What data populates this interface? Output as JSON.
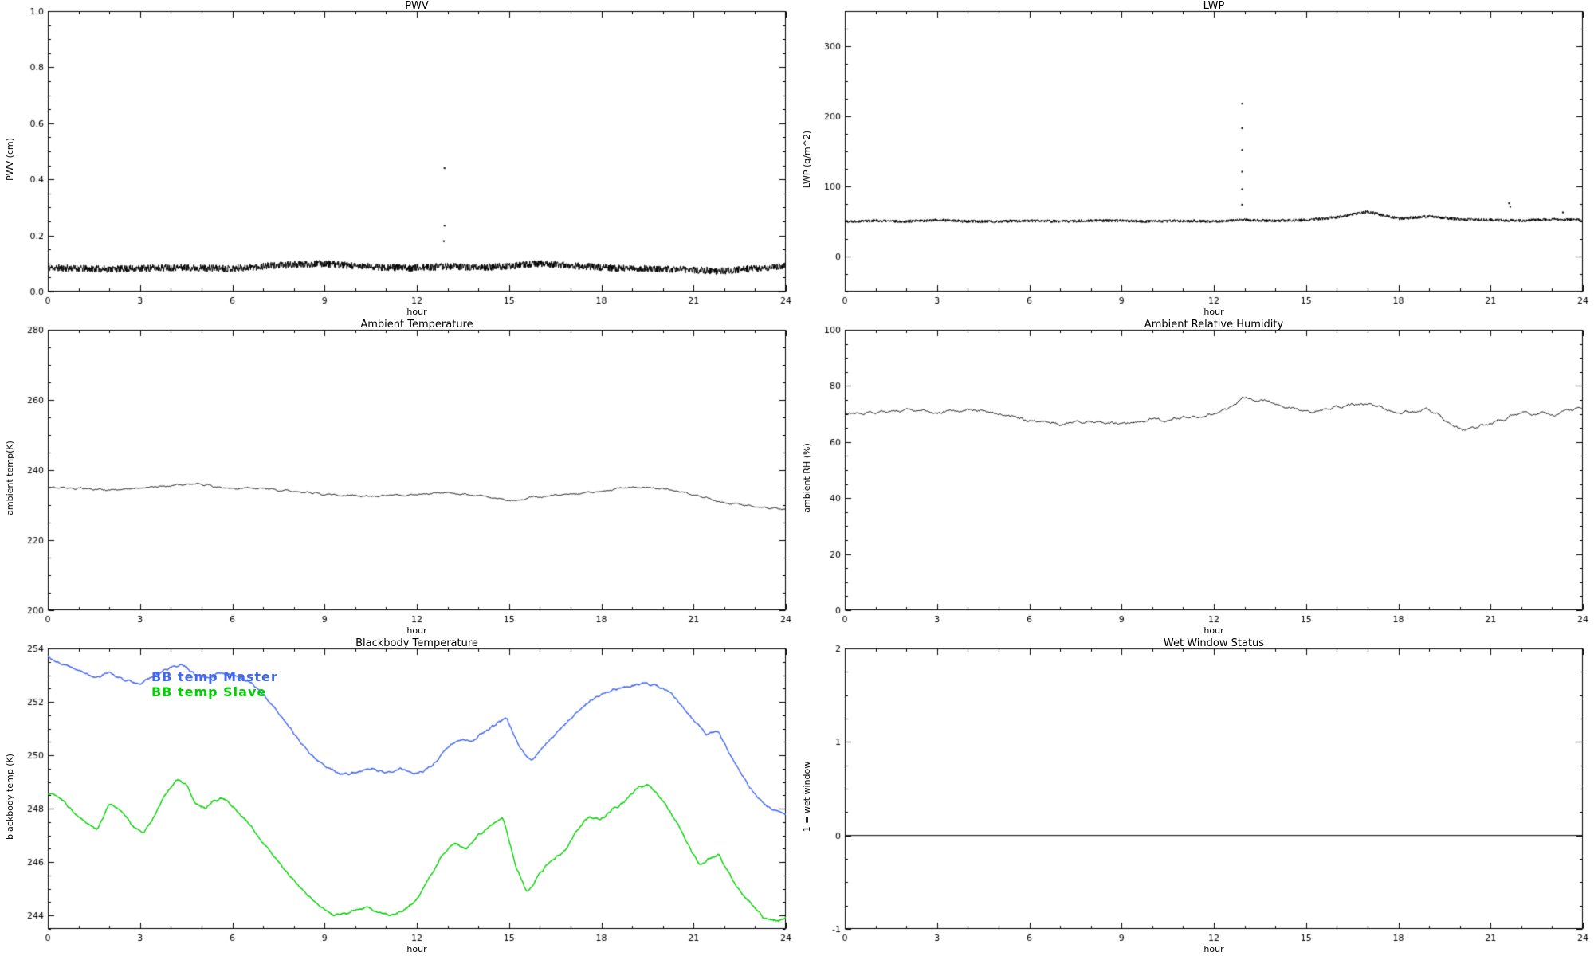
{
  "page": {
    "background": "#ffffff"
  },
  "chart_data": [
    {
      "id": "pwv",
      "type": "line",
      "title": "PWV",
      "xlabel": "hour",
      "ylabel": "PWV (cm)",
      "xlim": [
        0,
        24
      ],
      "ylim": [
        0,
        1
      ],
      "xticks": [
        0,
        3,
        6,
        9,
        12,
        15,
        18,
        21,
        24
      ],
      "xtick_labels": [
        "0",
        "3",
        "6",
        "9",
        "12",
        "15",
        "18",
        "21",
        "24"
      ],
      "yticks": [
        0,
        0.2,
        0.4,
        0.6,
        0.8,
        1
      ],
      "ytick_labels": [
        "0.0",
        "0.2",
        "0.4",
        "0.6",
        "0.8",
        "1.0"
      ],
      "xminor": 1,
      "yminor": 0.05,
      "grid": false,
      "seed": 11,
      "series": [
        {
          "name": "PWV",
          "color": "#000000",
          "dx": 1,
          "n": 2200,
          "noise": 0.013,
          "smooth": 0,
          "anchors_y": [
            0.085,
            0.082,
            0.08,
            0.082,
            0.086,
            0.084,
            0.082,
            0.09,
            0.096,
            0.1,
            0.09,
            0.086,
            0.084,
            0.09,
            0.086,
            0.09,
            0.1,
            0.092,
            0.086,
            0.082,
            0.08,
            0.077,
            0.073,
            0.082,
            0.09
          ]
        }
      ],
      "outliers": [
        [
          12.9,
          0.44
        ],
        [
          12.9,
          0.235
        ],
        [
          12.88,
          0.18
        ]
      ]
    },
    {
      "id": "lwp",
      "type": "line",
      "title": "LWP",
      "xlabel": "hour",
      "ylabel": "LWP (g/m^2)",
      "xlim": [
        0,
        24
      ],
      "ylim": [
        -50,
        350
      ],
      "xticks": [
        0,
        3,
        6,
        9,
        12,
        15,
        18,
        21,
        24
      ],
      "xtick_labels": [
        "0",
        "3",
        "6",
        "9",
        "12",
        "15",
        "18",
        "21",
        "24"
      ],
      "yticks": [
        0,
        100,
        200,
        300
      ],
      "ytick_labels": [
        "0",
        "100",
        "200",
        "300"
      ],
      "xminor": 1,
      "yminor": 25,
      "grid": false,
      "seed": 22,
      "series": [
        {
          "name": "LWP",
          "color": "#000000",
          "dx": 1,
          "n": 2200,
          "noise": 2.2,
          "smooth": 0,
          "anchors_y": [
            50,
            51,
            50,
            52,
            50,
            50,
            51,
            50,
            51,
            51,
            50,
            51,
            50,
            52,
            51,
            52,
            56,
            64,
            54,
            57,
            53,
            52,
            51,
            53,
            52
          ]
        }
      ],
      "outliers": [
        [
          12.92,
          218
        ],
        [
          12.92,
          183
        ],
        [
          12.92,
          152
        ],
        [
          12.92,
          121
        ],
        [
          12.92,
          96
        ],
        [
          12.92,
          74
        ],
        [
          21.6,
          76
        ],
        [
          21.64,
          71
        ],
        [
          23.35,
          63
        ]
      ]
    },
    {
      "id": "ambient-temperature",
      "type": "line",
      "title": "Ambient Temperature",
      "xlabel": "hour",
      "ylabel": "ambient temp(K)",
      "xlim": [
        0,
        24
      ],
      "ylim": [
        200,
        280
      ],
      "xticks": [
        0,
        3,
        6,
        9,
        12,
        15,
        18,
        21,
        24
      ],
      "xtick_labels": [
        "0",
        "3",
        "6",
        "9",
        "12",
        "15",
        "18",
        "21",
        "24"
      ],
      "yticks": [
        200,
        220,
        240,
        260,
        280
      ],
      "ytick_labels": [
        "200",
        "220",
        "240",
        "260",
        "280"
      ],
      "xminor": 1,
      "yminor": 5,
      "grid": false,
      "seed": 33,
      "series": [
        {
          "name": "ambient temp",
          "color": "#000000",
          "dx": 1,
          "n": 1400,
          "noise": 1.0,
          "smooth": 5,
          "anchors_y": [
            235.0,
            234.6,
            234.3,
            234.9,
            235.6,
            235.9,
            234.7,
            234.6,
            233.9,
            233.0,
            232.8,
            232.6,
            233.1,
            233.4,
            232.9,
            231.2,
            232.5,
            233.1,
            233.9,
            235.2,
            234.7,
            233.1,
            230.7,
            229.6,
            228.7
          ]
        }
      ],
      "outliers": []
    },
    {
      "id": "ambient-relative-humidity",
      "type": "line",
      "title": "Ambient Relative Humidity",
      "xlabel": "hour",
      "ylabel": "ambient RH (%)",
      "xlim": [
        0,
        24
      ],
      "ylim": [
        0,
        100
      ],
      "xticks": [
        0,
        3,
        6,
        9,
        12,
        15,
        18,
        21,
        24
      ],
      "xtick_labels": [
        "0",
        "3",
        "6",
        "9",
        "12",
        "15",
        "18",
        "21",
        "24"
      ],
      "yticks": [
        0,
        20,
        40,
        60,
        80,
        100
      ],
      "ytick_labels": [
        "0",
        "20",
        "40",
        "60",
        "80",
        "100"
      ],
      "xminor": 1,
      "yminor": 5,
      "grid": false,
      "seed": 44,
      "series": [
        {
          "name": "ambient RH",
          "color": "#000000",
          "dx": 1,
          "n": 1400,
          "noise": 2.0,
          "smooth": 5,
          "anchors_y": [
            70,
            70.5,
            71.5,
            70.5,
            71.5,
            70,
            67.5,
            66.5,
            67.5,
            66.5,
            68,
            68.5,
            69.5,
            76,
            73.5,
            70.5,
            72.5,
            73.5,
            70.5,
            71.5,
            64.5,
            66.5,
            70.5,
            70,
            72
          ]
        }
      ],
      "outliers": []
    },
    {
      "id": "blackbody-temperature",
      "type": "line",
      "title": "Blackbody Temperature",
      "xlabel": "hour",
      "ylabel": "blackbody temp (K)",
      "xlim": [
        0,
        24
      ],
      "ylim": [
        243.5,
        254
      ],
      "xticks": [
        0,
        3,
        6,
        9,
        12,
        15,
        18,
        21,
        24
      ],
      "xtick_labels": [
        "0",
        "3",
        "6",
        "9",
        "12",
        "15",
        "18",
        "21",
        "24"
      ],
      "yticks": [
        244,
        246,
        248,
        250,
        252,
        254
      ],
      "ytick_labels": [
        "244",
        "246",
        "248",
        "250",
        "252",
        "254"
      ],
      "xminor": 1,
      "yminor": 0.5,
      "grid": false,
      "seed": 55,
      "legend": [
        {
          "label": "BB temp Master",
          "color": "#4368f0"
        },
        {
          "label": "BB temp Slave",
          "color": "#00d000"
        }
      ],
      "series": [
        {
          "name": "BB temp Master",
          "color": "#4368f0",
          "n": 1600,
          "noise": 0.1,
          "smooth": 3,
          "lw": 1.4,
          "anchors": [
            [
              0,
              253.7
            ],
            [
              0.5,
              253.4
            ],
            [
              1,
              253.2
            ],
            [
              1.5,
              252.9
            ],
            [
              2,
              253.1
            ],
            [
              2.5,
              252.8
            ],
            [
              3,
              252.7
            ],
            [
              3.5,
              253.0
            ],
            [
              4,
              253.3
            ],
            [
              4.4,
              253.4
            ],
            [
              4.8,
              253.0
            ],
            [
              5.2,
              252.9
            ],
            [
              5.6,
              253.1
            ],
            [
              6,
              253.0
            ],
            [
              6.5,
              252.8
            ],
            [
              7,
              252.3
            ],
            [
              7.5,
              251.6
            ],
            [
              8,
              250.8
            ],
            [
              8.5,
              250.1
            ],
            [
              9,
              249.6
            ],
            [
              9.5,
              249.3
            ],
            [
              10,
              249.35
            ],
            [
              10.5,
              249.5
            ],
            [
              11,
              249.35
            ],
            [
              11.5,
              249.5
            ],
            [
              12,
              249.3
            ],
            [
              12.5,
              249.6
            ],
            [
              13,
              250.3
            ],
            [
              13.4,
              250.6
            ],
            [
              13.8,
              250.5
            ],
            [
              14.2,
              250.9
            ],
            [
              14.6,
              251.2
            ],
            [
              14.9,
              251.4
            ],
            [
              15.3,
              250.4
            ],
            [
              15.7,
              249.8
            ],
            [
              16.1,
              250.3
            ],
            [
              16.6,
              250.9
            ],
            [
              17.1,
              251.5
            ],
            [
              17.6,
              252.0
            ],
            [
              18,
              252.3
            ],
            [
              18.5,
              252.5
            ],
            [
              19,
              252.6
            ],
            [
              19.4,
              252.7
            ],
            [
              19.8,
              252.6
            ],
            [
              20.2,
              252.4
            ],
            [
              20.6,
              251.9
            ],
            [
              21,
              251.3
            ],
            [
              21.4,
              250.8
            ],
            [
              21.8,
              250.9
            ],
            [
              22.2,
              250.0
            ],
            [
              22.6,
              249.2
            ],
            [
              23,
              248.5
            ],
            [
              23.4,
              248.1
            ],
            [
              23.7,
              247.9
            ],
            [
              24,
              247.8
            ]
          ]
        },
        {
          "name": "BB temp Slave",
          "color": "#00d000",
          "n": 1600,
          "noise": 0.1,
          "smooth": 3,
          "lw": 1.4,
          "anchors": [
            [
              0,
              248.6
            ],
            [
              0.4,
              248.4
            ],
            [
              0.8,
              247.9
            ],
            [
              1.2,
              247.5
            ],
            [
              1.6,
              247.2
            ],
            [
              2,
              248.2
            ],
            [
              2.4,
              247.9
            ],
            [
              2.8,
              247.3
            ],
            [
              3.1,
              247.1
            ],
            [
              3.4,
              247.6
            ],
            [
              3.8,
              248.5
            ],
            [
              4.2,
              249.1
            ],
            [
              4.5,
              248.9
            ],
            [
              4.8,
              248.2
            ],
            [
              5.1,
              248.0
            ],
            [
              5.4,
              248.3
            ],
            [
              5.7,
              248.4
            ],
            [
              6,
              248.1
            ],
            [
              6.5,
              247.5
            ],
            [
              7,
              246.7
            ],
            [
              7.5,
              246.0
            ],
            [
              8,
              245.3
            ],
            [
              8.5,
              244.7
            ],
            [
              9,
              244.2
            ],
            [
              9.3,
              244.0
            ],
            [
              9.7,
              244.1
            ],
            [
              10,
              244.2
            ],
            [
              10.4,
              244.3
            ],
            [
              10.8,
              244.1
            ],
            [
              11.2,
              244.0
            ],
            [
              11.6,
              244.2
            ],
            [
              12,
              244.6
            ],
            [
              12.4,
              245.4
            ],
            [
              12.8,
              246.2
            ],
            [
              13.2,
              246.7
            ],
            [
              13.6,
              246.5
            ],
            [
              14,
              247.0
            ],
            [
              14.4,
              247.4
            ],
            [
              14.8,
              247.7
            ],
            [
              15.2,
              245.9
            ],
            [
              15.6,
              244.8
            ],
            [
              16,
              245.6
            ],
            [
              16.4,
              246.1
            ],
            [
              16.8,
              246.4
            ],
            [
              17.2,
              247.2
            ],
            [
              17.6,
              247.7
            ],
            [
              18,
              247.6
            ],
            [
              18.4,
              248.0
            ],
            [
              18.8,
              248.3
            ],
            [
              19.2,
              248.8
            ],
            [
              19.5,
              248.9
            ],
            [
              20,
              248.3
            ],
            [
              20.4,
              247.6
            ],
            [
              20.8,
              246.7
            ],
            [
              21.2,
              245.9
            ],
            [
              21.5,
              246.1
            ],
            [
              21.8,
              246.3
            ],
            [
              22.1,
              245.7
            ],
            [
              22.5,
              244.9
            ],
            [
              22.9,
              244.4
            ],
            [
              23.3,
              243.9
            ],
            [
              23.6,
              243.8
            ],
            [
              24,
              243.9
            ]
          ]
        }
      ],
      "outliers": []
    },
    {
      "id": "wet-window-status",
      "type": "line",
      "title": "Wet Window Status",
      "xlabel": "hour",
      "ylabel": "1 = wet window",
      "xlim": [
        0,
        24
      ],
      "ylim": [
        -1,
        2
      ],
      "xticks": [
        0,
        3,
        6,
        9,
        12,
        15,
        18,
        21,
        24
      ],
      "xtick_labels": [
        "0",
        "3",
        "6",
        "9",
        "12",
        "15",
        "18",
        "21",
        "24"
      ],
      "yticks": [
        -1,
        0,
        1,
        2
      ],
      "ytick_labels": [
        "-1",
        "0",
        "1",
        "2"
      ],
      "xminor": 1,
      "yminor": 0.25,
      "grid": false,
      "seed": 66,
      "series": [
        {
          "name": "wet window",
          "color": "#000000",
          "dx": 24,
          "n": 2,
          "noise": 0,
          "smooth": 0,
          "anchors_y": [
            0,
            0
          ]
        }
      ],
      "outliers": []
    }
  ]
}
